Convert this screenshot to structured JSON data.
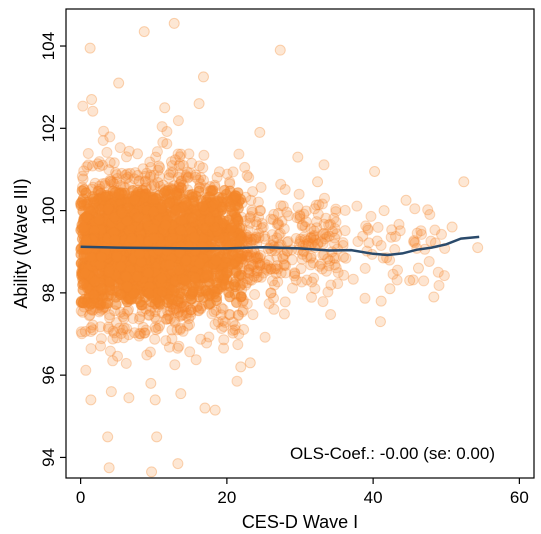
{
  "chart_data": {
    "type": "scatter",
    "xlabel": "CES-D Wave I",
    "ylabel": "Ability (Wave III)",
    "xlim": [
      -2,
      62
    ],
    "ylim": [
      93.5,
      104.9
    ],
    "x_ticks": [
      0,
      20,
      40,
      60
    ],
    "y_ticks": [
      94,
      96,
      98,
      100,
      102,
      104
    ],
    "grid": false,
    "annotation": "OLS-Coef.: -0.00 (se: 0.00)",
    "colors": {
      "points": "#f4862a",
      "fit_line": "#2a4a6b",
      "frame": "#000000"
    },
    "scatter_summary": {
      "cloud_center_y": 99.1,
      "dense_x_range": [
        0,
        22
      ]
    },
    "outlier_points": [
      {
        "x": 1.3,
        "y": 103.95
      },
      {
        "x": 8.7,
        "y": 104.35
      },
      {
        "x": 12.8,
        "y": 104.55
      },
      {
        "x": 27.3,
        "y": 103.9
      },
      {
        "x": 5.2,
        "y": 103.1
      },
      {
        "x": 16.8,
        "y": 103.25
      },
      {
        "x": 1.5,
        "y": 102.7
      },
      {
        "x": 11.5,
        "y": 102.5
      },
      {
        "x": 16.2,
        "y": 102.6
      },
      {
        "x": 24.5,
        "y": 101.9
      },
      {
        "x": 29.7,
        "y": 101.3
      },
      {
        "x": 32.4,
        "y": 100.7
      },
      {
        "x": 40.2,
        "y": 100.95
      },
      {
        "x": 52.4,
        "y": 100.7
      },
      {
        "x": 41.5,
        "y": 100.0
      },
      {
        "x": 44.5,
        "y": 100.25
      },
      {
        "x": 50.8,
        "y": 99.6
      },
      {
        "x": 54.3,
        "y": 99.1
      },
      {
        "x": 46.2,
        "y": 98.6
      },
      {
        "x": 41.1,
        "y": 97.8
      },
      {
        "x": 42.3,
        "y": 98.1
      },
      {
        "x": 41.0,
        "y": 97.3
      },
      {
        "x": 48.3,
        "y": 97.9
      },
      {
        "x": 45.0,
        "y": 98.3
      },
      {
        "x": 3.7,
        "y": 94.5
      },
      {
        "x": 10.4,
        "y": 94.5
      },
      {
        "x": 3.9,
        "y": 93.75
      },
      {
        "x": 9.7,
        "y": 93.65
      },
      {
        "x": 13.3,
        "y": 93.85
      },
      {
        "x": 1.4,
        "y": 95.4
      },
      {
        "x": 4.2,
        "y": 95.6
      },
      {
        "x": 10.2,
        "y": 95.4
      },
      {
        "x": 17.0,
        "y": 95.2
      },
      {
        "x": 18.4,
        "y": 95.15
      },
      {
        "x": 6.6,
        "y": 95.45
      },
      {
        "x": 9.6,
        "y": 95.8
      },
      {
        "x": 13.7,
        "y": 95.55
      },
      {
        "x": 23.2,
        "y": 96.3
      },
      {
        "x": 21.9,
        "y": 96.2
      }
    ],
    "fit_line": [
      {
        "x": 0,
        "y": 99.12
      },
      {
        "x": 5,
        "y": 99.1
      },
      {
        "x": 10,
        "y": 99.09
      },
      {
        "x": 15,
        "y": 99.08
      },
      {
        "x": 20,
        "y": 99.08
      },
      {
        "x": 25,
        "y": 99.11
      },
      {
        "x": 30,
        "y": 99.08
      },
      {
        "x": 34,
        "y": 99.03
      },
      {
        "x": 37,
        "y": 99.04
      },
      {
        "x": 40,
        "y": 98.95
      },
      {
        "x": 42,
        "y": 98.92
      },
      {
        "x": 44,
        "y": 98.96
      },
      {
        "x": 46,
        "y": 99.05
      },
      {
        "x": 48,
        "y": 99.1
      },
      {
        "x": 50,
        "y": 99.18
      },
      {
        "x": 52,
        "y": 99.32
      },
      {
        "x": 54.5,
        "y": 99.36
      }
    ]
  }
}
